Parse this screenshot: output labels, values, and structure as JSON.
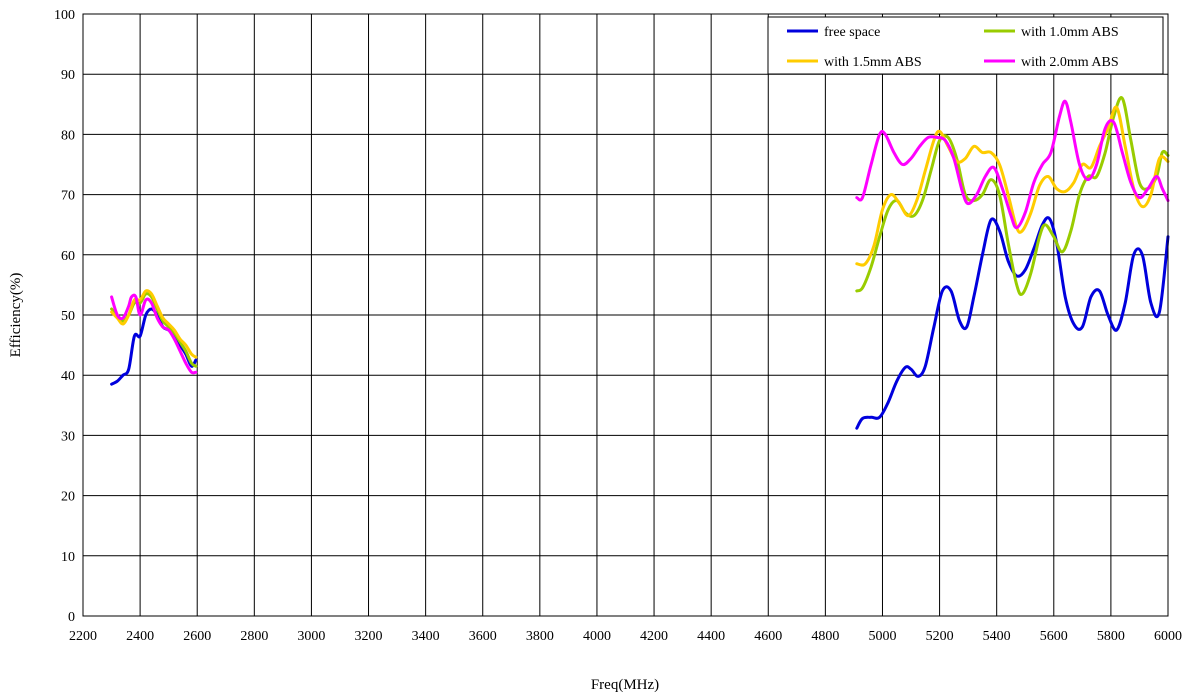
{
  "chart_data": {
    "type": "line",
    "xlabel": "Freq(MHz)",
    "ylabel": "Efficiency(%)",
    "xlim": [
      2200,
      6000
    ],
    "ylim": [
      0,
      100
    ],
    "xticks": [
      2200,
      2400,
      2600,
      2800,
      3000,
      3200,
      3400,
      3600,
      3800,
      4000,
      4200,
      4400,
      4600,
      4800,
      5000,
      5200,
      5400,
      5600,
      5800,
      6000
    ],
    "yticks": [
      0,
      10,
      20,
      30,
      40,
      50,
      60,
      70,
      80,
      90,
      100
    ],
    "grid": true,
    "legend_position": "top-right",
    "series": [
      {
        "name": "free space",
        "color": "#0000dd",
        "segments": [
          [
            [
              2300,
              38.5
            ],
            [
              2320,
              39
            ],
            [
              2340,
              40
            ],
            [
              2360,
              41
            ],
            [
              2380,
              46.5
            ],
            [
              2400,
              46.5
            ],
            [
              2420,
              50
            ],
            [
              2440,
              51
            ],
            [
              2460,
              50
            ],
            [
              2480,
              48
            ],
            [
              2500,
              47.5
            ],
            [
              2520,
              46.5
            ],
            [
              2540,
              45
            ],
            [
              2560,
              43.5
            ],
            [
              2580,
              41.5
            ],
            [
              2595,
              42.5
            ]
          ],
          [
            [
              4910,
              31.2
            ],
            [
              4930,
              32.8
            ],
            [
              4960,
              33
            ],
            [
              4990,
              33
            ],
            [
              5020,
              35.5
            ],
            [
              5050,
              39
            ],
            [
              5080,
              41.3
            ],
            [
              5100,
              41
            ],
            [
              5125,
              39.8
            ],
            [
              5150,
              41.5
            ],
            [
              5180,
              48
            ],
            [
              5210,
              54
            ],
            [
              5240,
              54
            ],
            [
              5270,
              49
            ],
            [
              5295,
              48
            ],
            [
              5320,
              53
            ],
            [
              5350,
              60
            ],
            [
              5380,
              65.8
            ],
            [
              5410,
              64
            ],
            [
              5440,
              59
            ],
            [
              5470,
              56.5
            ],
            [
              5500,
              57.5
            ],
            [
              5530,
              61
            ],
            [
              5560,
              65
            ],
            [
              5585,
              66
            ],
            [
              5610,
              62
            ],
            [
              5640,
              53
            ],
            [
              5670,
              48.5
            ],
            [
              5700,
              48
            ],
            [
              5730,
              53
            ],
            [
              5760,
              54
            ],
            [
              5790,
              50
            ],
            [
              5820,
              47.5
            ],
            [
              5850,
              52
            ],
            [
              5880,
              60
            ],
            [
              5910,
              60
            ],
            [
              5940,
              52
            ],
            [
              5970,
              50.5
            ],
            [
              6000,
              63
            ]
          ]
        ]
      },
      {
        "name": "with 1.0mm ABS",
        "color": "#99cc00",
        "segments": [
          [
            [
              2300,
              51
            ],
            [
              2320,
              50
            ],
            [
              2340,
              49
            ],
            [
              2360,
              50
            ],
            [
              2380,
              52
            ],
            [
              2400,
              52
            ],
            [
              2420,
              53.5
            ],
            [
              2440,
              53
            ],
            [
              2460,
              51
            ],
            [
              2480,
              49
            ],
            [
              2500,
              48
            ],
            [
              2520,
              47
            ],
            [
              2540,
              45.5
            ],
            [
              2560,
              44
            ],
            [
              2580,
              42
            ],
            [
              2595,
              41.5
            ]
          ],
          [
            [
              4910,
              54
            ],
            [
              4930,
              54.5
            ],
            [
              4960,
              58
            ],
            [
              4990,
              63
            ],
            [
              5020,
              67.5
            ],
            [
              5050,
              69
            ],
            [
              5080,
              67
            ],
            [
              5110,
              66.5
            ],
            [
              5140,
              69
            ],
            [
              5170,
              74
            ],
            [
              5200,
              79
            ],
            [
              5230,
              79.5
            ],
            [
              5260,
              76
            ],
            [
              5290,
              70
            ],
            [
              5320,
              69
            ],
            [
              5350,
              70
            ],
            [
              5380,
              72.5
            ],
            [
              5410,
              70
            ],
            [
              5440,
              62
            ],
            [
              5470,
              55
            ],
            [
              5490,
              53.5
            ],
            [
              5520,
              57
            ],
            [
              5550,
              63
            ],
            [
              5570,
              65
            ],
            [
              5600,
              63
            ],
            [
              5630,
              60.5
            ],
            [
              5660,
              64
            ],
            [
              5690,
              70
            ],
            [
              5720,
              73
            ],
            [
              5750,
              73
            ],
            [
              5780,
              77
            ],
            [
              5810,
              83
            ],
            [
              5840,
              86
            ],
            [
              5870,
              79
            ],
            [
              5900,
              72
            ],
            [
              5930,
              71
            ],
            [
              5960,
              73
            ],
            [
              5980,
              77
            ],
            [
              6000,
              76.5
            ]
          ]
        ]
      },
      {
        "name": "with 1.5mm ABS",
        "color": "#ffcc00",
        "segments": [
          [
            [
              2300,
              50.5
            ],
            [
              2320,
              49.5
            ],
            [
              2340,
              48.5
            ],
            [
              2360,
              50
            ],
            [
              2380,
              52.5
            ],
            [
              2400,
              52.5
            ],
            [
              2420,
              54
            ],
            [
              2440,
              53.5
            ],
            [
              2460,
              51.5
            ],
            [
              2480,
              49.5
            ],
            [
              2500,
              48.5
            ],
            [
              2520,
              47.5
            ],
            [
              2540,
              46
            ],
            [
              2560,
              45
            ],
            [
              2580,
              43.5
            ],
            [
              2595,
              43
            ]
          ],
          [
            [
              4910,
              58.5
            ],
            [
              4940,
              58.5
            ],
            [
              4970,
              61.5
            ],
            [
              5000,
              67.5
            ],
            [
              5030,
              70
            ],
            [
              5060,
              68.5
            ],
            [
              5090,
              66.5
            ],
            [
              5120,
              69
            ],
            [
              5150,
              74
            ],
            [
              5180,
              79
            ],
            [
              5200,
              80.5
            ],
            [
              5230,
              78
            ],
            [
              5260,
              75.5
            ],
            [
              5290,
              76
            ],
            [
              5320,
              78
            ],
            [
              5350,
              77
            ],
            [
              5380,
              77
            ],
            [
              5410,
              75
            ],
            [
              5440,
              70
            ],
            [
              5470,
              64.5
            ],
            [
              5490,
              64
            ],
            [
              5520,
              67
            ],
            [
              5550,
              71.5
            ],
            [
              5580,
              73
            ],
            [
              5610,
              71
            ],
            [
              5640,
              70.5
            ],
            [
              5670,
              72
            ],
            [
              5700,
              75
            ],
            [
              5730,
              74.5
            ],
            [
              5760,
              78
            ],
            [
              5790,
              81
            ],
            [
              5820,
              84.5
            ],
            [
              5850,
              78
            ],
            [
              5880,
              71
            ],
            [
              5910,
              68
            ],
            [
              5940,
              70
            ],
            [
              5970,
              76
            ],
            [
              6000,
              75.5
            ]
          ]
        ]
      },
      {
        "name": "with 2.0mm ABS",
        "color": "#ff00ff",
        "segments": [
          [
            [
              2300,
              53
            ],
            [
              2320,
              50
            ],
            [
              2340,
              49.5
            ],
            [
              2360,
              51.5
            ],
            [
              2370,
              53
            ],
            [
              2385,
              53
            ],
            [
              2400,
              50
            ],
            [
              2420,
              52.5
            ],
            [
              2440,
              52
            ],
            [
              2460,
              49.5
            ],
            [
              2480,
              48
            ],
            [
              2500,
              47.5
            ],
            [
              2520,
              46
            ],
            [
              2540,
              44
            ],
            [
              2560,
              42
            ],
            [
              2580,
              40.5
            ],
            [
              2595,
              40.5
            ]
          ],
          [
            [
              4910,
              69.5
            ],
            [
              4930,
              69.5
            ],
            [
              4960,
              75
            ],
            [
              4990,
              80
            ],
            [
              5010,
              80
            ],
            [
              5040,
              77
            ],
            [
              5070,
              75
            ],
            [
              5100,
              76
            ],
            [
              5130,
              78
            ],
            [
              5160,
              79.5
            ],
            [
              5190,
              79.5
            ],
            [
              5220,
              79
            ],
            [
              5250,
              76
            ],
            [
              5280,
              70.5
            ],
            [
              5300,
              68.5
            ],
            [
              5330,
              70
            ],
            [
              5360,
              73
            ],
            [
              5390,
              74.5
            ],
            [
              5420,
              71
            ],
            [
              5450,
              66.5
            ],
            [
              5470,
              64.5
            ],
            [
              5500,
              67
            ],
            [
              5530,
              72
            ],
            [
              5560,
              75
            ],
            [
              5590,
              77
            ],
            [
              5620,
              83
            ],
            [
              5640,
              85.5
            ],
            [
              5660,
              82
            ],
            [
              5690,
              75
            ],
            [
              5720,
              72.5
            ],
            [
              5750,
              75
            ],
            [
              5780,
              81
            ],
            [
              5810,
              82
            ],
            [
              5840,
              77
            ],
            [
              5870,
              72
            ],
            [
              5900,
              69.5
            ],
            [
              5930,
              71
            ],
            [
              5960,
              73
            ],
            [
              5980,
              71
            ],
            [
              6000,
              69
            ]
          ]
        ]
      }
    ]
  }
}
